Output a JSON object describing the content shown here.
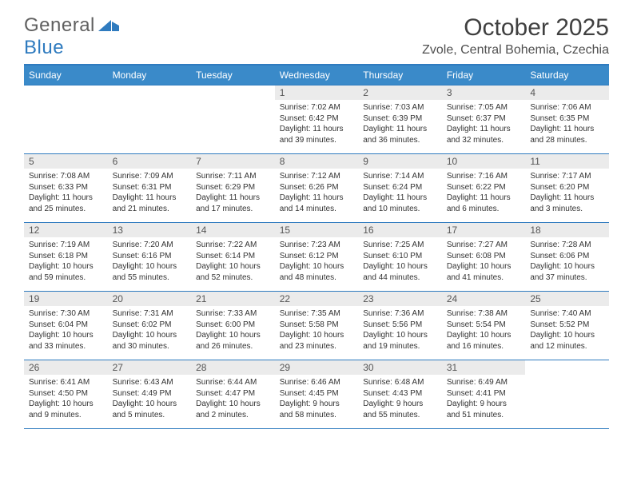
{
  "logo": {
    "word1": "General",
    "word2": "Blue"
  },
  "header": {
    "title": "October 2025",
    "location": "Zvole, Central Bohemia, Czechia"
  },
  "colors": {
    "header_bg": "#3a8ac9",
    "border": "#2f7bbf",
    "daynum_bg": "#ebebeb",
    "text": "#333333"
  },
  "day_headers": [
    "Sunday",
    "Monday",
    "Tuesday",
    "Wednesday",
    "Thursday",
    "Friday",
    "Saturday"
  ],
  "weeks": [
    [
      null,
      null,
      null,
      {
        "n": "1",
        "sr": "7:02 AM",
        "ss": "6:42 PM",
        "dl": "11 hours and 39 minutes."
      },
      {
        "n": "2",
        "sr": "7:03 AM",
        "ss": "6:39 PM",
        "dl": "11 hours and 36 minutes."
      },
      {
        "n": "3",
        "sr": "7:05 AM",
        "ss": "6:37 PM",
        "dl": "11 hours and 32 minutes."
      },
      {
        "n": "4",
        "sr": "7:06 AM",
        "ss": "6:35 PM",
        "dl": "11 hours and 28 minutes."
      }
    ],
    [
      {
        "n": "5",
        "sr": "7:08 AM",
        "ss": "6:33 PM",
        "dl": "11 hours and 25 minutes."
      },
      {
        "n": "6",
        "sr": "7:09 AM",
        "ss": "6:31 PM",
        "dl": "11 hours and 21 minutes."
      },
      {
        "n": "7",
        "sr": "7:11 AM",
        "ss": "6:29 PM",
        "dl": "11 hours and 17 minutes."
      },
      {
        "n": "8",
        "sr": "7:12 AM",
        "ss": "6:26 PM",
        "dl": "11 hours and 14 minutes."
      },
      {
        "n": "9",
        "sr": "7:14 AM",
        "ss": "6:24 PM",
        "dl": "11 hours and 10 minutes."
      },
      {
        "n": "10",
        "sr": "7:16 AM",
        "ss": "6:22 PM",
        "dl": "11 hours and 6 minutes."
      },
      {
        "n": "11",
        "sr": "7:17 AM",
        "ss": "6:20 PM",
        "dl": "11 hours and 3 minutes."
      }
    ],
    [
      {
        "n": "12",
        "sr": "7:19 AM",
        "ss": "6:18 PM",
        "dl": "10 hours and 59 minutes."
      },
      {
        "n": "13",
        "sr": "7:20 AM",
        "ss": "6:16 PM",
        "dl": "10 hours and 55 minutes."
      },
      {
        "n": "14",
        "sr": "7:22 AM",
        "ss": "6:14 PM",
        "dl": "10 hours and 52 minutes."
      },
      {
        "n": "15",
        "sr": "7:23 AM",
        "ss": "6:12 PM",
        "dl": "10 hours and 48 minutes."
      },
      {
        "n": "16",
        "sr": "7:25 AM",
        "ss": "6:10 PM",
        "dl": "10 hours and 44 minutes."
      },
      {
        "n": "17",
        "sr": "7:27 AM",
        "ss": "6:08 PM",
        "dl": "10 hours and 41 minutes."
      },
      {
        "n": "18",
        "sr": "7:28 AM",
        "ss": "6:06 PM",
        "dl": "10 hours and 37 minutes."
      }
    ],
    [
      {
        "n": "19",
        "sr": "7:30 AM",
        "ss": "6:04 PM",
        "dl": "10 hours and 33 minutes."
      },
      {
        "n": "20",
        "sr": "7:31 AM",
        "ss": "6:02 PM",
        "dl": "10 hours and 30 minutes."
      },
      {
        "n": "21",
        "sr": "7:33 AM",
        "ss": "6:00 PM",
        "dl": "10 hours and 26 minutes."
      },
      {
        "n": "22",
        "sr": "7:35 AM",
        "ss": "5:58 PM",
        "dl": "10 hours and 23 minutes."
      },
      {
        "n": "23",
        "sr": "7:36 AM",
        "ss": "5:56 PM",
        "dl": "10 hours and 19 minutes."
      },
      {
        "n": "24",
        "sr": "7:38 AM",
        "ss": "5:54 PM",
        "dl": "10 hours and 16 minutes."
      },
      {
        "n": "25",
        "sr": "7:40 AM",
        "ss": "5:52 PM",
        "dl": "10 hours and 12 minutes."
      }
    ],
    [
      {
        "n": "26",
        "sr": "6:41 AM",
        "ss": "4:50 PM",
        "dl": "10 hours and 9 minutes."
      },
      {
        "n": "27",
        "sr": "6:43 AM",
        "ss": "4:49 PM",
        "dl": "10 hours and 5 minutes."
      },
      {
        "n": "28",
        "sr": "6:44 AM",
        "ss": "4:47 PM",
        "dl": "10 hours and 2 minutes."
      },
      {
        "n": "29",
        "sr": "6:46 AM",
        "ss": "4:45 PM",
        "dl": "9 hours and 58 minutes."
      },
      {
        "n": "30",
        "sr": "6:48 AM",
        "ss": "4:43 PM",
        "dl": "9 hours and 55 minutes."
      },
      {
        "n": "31",
        "sr": "6:49 AM",
        "ss": "4:41 PM",
        "dl": "9 hours and 51 minutes."
      },
      null
    ]
  ],
  "labels": {
    "sunrise": "Sunrise:",
    "sunset": "Sunset:",
    "daylight": "Daylight:"
  }
}
